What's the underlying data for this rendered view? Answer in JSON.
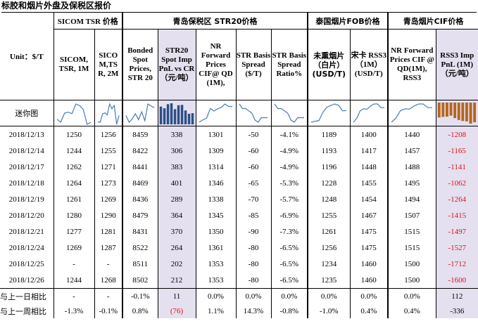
{
  "page_title": "标胶和烟片外盘及保税区报价",
  "header_groups": {
    "sicom": "SICOM TSR 价格",
    "qingdao_bonded": "青岛保税区 STR20价格",
    "thai_fob": "泰国烟片FOB价格",
    "qingdao_cif": "青岛烟片CIF价格"
  },
  "unit_label": "Unit：$/T",
  "mini_chart_label": "迷你图",
  "columns": [
    "SICOM, TSR, 1M",
    "SICO M,TS R, 2M",
    "Bonded Spot Prices, STR 20",
    "STR20 Spot Imp PnL vs CR（元/吨）",
    "NR Forward Prices CIF@ QD (1M),",
    "STR Basis Spread ($/T)",
    "STR Basis Spread Ratio%",
    "未熏烟片（白片）(USD/T)",
    "宋卡 RSS3 （1M） (USD/T)",
    "NR Forward Prices CIF @ QD(1M), RSS3",
    "RSS3 Imp PnL (1M) （元/吨）"
  ],
  "rows": [
    {
      "date": "2018/12/13",
      "v": [
        "1250",
        "1256",
        "8459",
        "338",
        "1301",
        "-50",
        "-4.1%",
        "1189",
        "1400",
        "1440",
        "-1208"
      ]
    },
    {
      "date": "2018/12/14",
      "v": [
        "1244",
        "1255",
        "8422",
        "306",
        "1309",
        "-60",
        "-4.9%",
        "1193",
        "1417",
        "1457",
        "-1165"
      ]
    },
    {
      "date": "2018/12/17",
      "v": [
        "1262",
        "1271",
        "8441",
        "383",
        "1314",
        "-60",
        "-4.9%",
        "1196",
        "1448",
        "1488",
        "-1141"
      ]
    },
    {
      "date": "2018/12/18",
      "v": [
        "1264",
        "1273",
        "8469",
        "401",
        "1346",
        "-65",
        "-5.3%",
        "1228",
        "1455",
        "1495",
        "-1062"
      ]
    },
    {
      "date": "2018/12/19",
      "v": [
        "1261",
        "1269",
        "8436",
        "289",
        "1338",
        "-70",
        "-5.7%",
        "1248",
        "1454",
        "1494",
        "-1264"
      ]
    },
    {
      "date": "2018/12/20",
      "v": [
        "1280",
        "1290",
        "8479",
        "364",
        "1345",
        "-85",
        "-6.9%",
        "1255",
        "1467",
        "1507",
        "-1415"
      ]
    },
    {
      "date": "2018/12/21",
      "v": [
        "1277",
        "1281",
        "8431",
        "370",
        "1350",
        "-90",
        "-7.3%",
        "1261",
        "1475",
        "1515",
        "-1497"
      ]
    },
    {
      "date": "2018/12/24",
      "v": [
        "1269",
        "1287",
        "8522",
        "264",
        "1361",
        "-80",
        "-6.5%",
        "1256",
        "1475",
        "1515",
        "-1527"
      ]
    },
    {
      "date": "2018/12/25",
      "v": [
        "-",
        "-",
        "8511",
        "202",
        "1353",
        "-80",
        "-6.5%",
        "1234",
        "1460",
        "1500",
        "-1712"
      ]
    },
    {
      "date": "2018/12/26",
      "v": [
        "1244",
        "1268",
        "8502",
        "212",
        "1353",
        "-80",
        "-6.5%",
        "1235",
        "1460",
        "1500",
        "-1600"
      ]
    }
  ],
  "summary": [
    {
      "label": "与上一日相比",
      "v": [
        "-",
        "-",
        "-0.1%",
        "11",
        "0.0%",
        "0.0%",
        "0.0%",
        "0.0%",
        "0.0%",
        "0.0%",
        "112"
      ]
    },
    {
      "label": "与上一周相比",
      "v": [
        "-1.3%",
        "-0.1%",
        "0.8%",
        "(76)",
        "1.1%",
        "14.3%",
        "-0.8%",
        "-1.0%",
        "0.4%",
        "0.4%",
        "-336"
      ]
    }
  ],
  "colors": {
    "highlight": "#e4e0f0",
    "negative": "#e01010",
    "bar": "#2b4f86",
    "neg_bar": "#b5651d",
    "line": "#4a7ab5"
  }
}
